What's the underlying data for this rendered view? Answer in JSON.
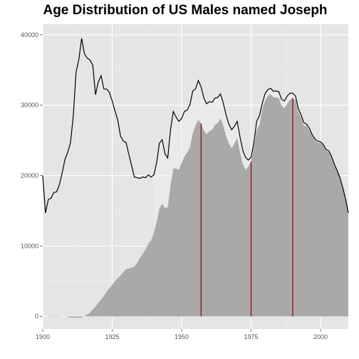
{
  "chart_data": {
    "type": "area",
    "title": "Age Distribution of US Males named Joseph",
    "xlabel": "",
    "ylabel": "",
    "xlim": [
      1900,
      2010
    ],
    "ylim": [
      -1800,
      41500
    ],
    "x_ticks": [
      1900,
      1925,
      1950,
      1975,
      2000
    ],
    "y_ticks": [
      0,
      10000,
      20000,
      30000,
      40000
    ],
    "x_tick_labels": [
      "1900",
      "1925",
      "1950",
      "1975",
      "2000"
    ],
    "y_tick_labels": [
      "0",
      "10000",
      "20000",
      "30000",
      "40000"
    ],
    "grid": true,
    "background": "#e5e5e5",
    "series": [
      {
        "role": "births",
        "style": "line",
        "color": "#000000",
        "points": [
          [
            1900,
            20000
          ],
          [
            1901,
            14700
          ],
          [
            1902,
            16600
          ],
          [
            1903,
            16800
          ],
          [
            1904,
            17600
          ],
          [
            1905,
            17700
          ],
          [
            1906,
            18700
          ],
          [
            1907,
            20400
          ],
          [
            1908,
            22300
          ],
          [
            1909,
            23300
          ],
          [
            1910,
            24700
          ],
          [
            1911,
            28500
          ],
          [
            1912,
            34700
          ],
          [
            1913,
            36500
          ],
          [
            1914,
            39500
          ],
          [
            1915,
            37300
          ],
          [
            1916,
            36700
          ],
          [
            1917,
            36400
          ],
          [
            1918,
            35700
          ],
          [
            1919,
            31500
          ],
          [
            1920,
            33300
          ],
          [
            1921,
            34200
          ],
          [
            1922,
            32300
          ],
          [
            1923,
            32300
          ],
          [
            1924,
            31800
          ],
          [
            1925,
            30600
          ],
          [
            1926,
            29200
          ],
          [
            1927,
            27900
          ],
          [
            1928,
            25600
          ],
          [
            1929,
            24900
          ],
          [
            1930,
            24700
          ],
          [
            1931,
            23000
          ],
          [
            1932,
            21400
          ],
          [
            1933,
            19800
          ],
          [
            1934,
            19700
          ],
          [
            1935,
            19600
          ],
          [
            1936,
            19800
          ],
          [
            1937,
            19700
          ],
          [
            1938,
            20100
          ],
          [
            1939,
            19800
          ],
          [
            1940,
            20100
          ],
          [
            1941,
            21800
          ],
          [
            1942,
            24600
          ],
          [
            1943,
            25100
          ],
          [
            1944,
            23100
          ],
          [
            1945,
            22500
          ],
          [
            1946,
            26500
          ],
          [
            1947,
            29100
          ],
          [
            1948,
            28300
          ],
          [
            1949,
            27700
          ],
          [
            1950,
            28100
          ],
          [
            1951,
            29100
          ],
          [
            1952,
            29300
          ],
          [
            1953,
            30100
          ],
          [
            1954,
            32000
          ],
          [
            1955,
            32300
          ],
          [
            1956,
            33500
          ],
          [
            1957,
            32600
          ],
          [
            1958,
            31000
          ],
          [
            1959,
            30200
          ],
          [
            1960,
            30500
          ],
          [
            1961,
            30400
          ],
          [
            1962,
            31000
          ],
          [
            1963,
            31100
          ],
          [
            1964,
            31600
          ],
          [
            1965,
            30300
          ],
          [
            1966,
            28600
          ],
          [
            1967,
            27300
          ],
          [
            1968,
            26500
          ],
          [
            1969,
            27000
          ],
          [
            1970,
            27700
          ],
          [
            1971,
            25500
          ],
          [
            1972,
            23600
          ],
          [
            1973,
            22600
          ],
          [
            1974,
            22200
          ],
          [
            1975,
            22600
          ],
          [
            1976,
            24600
          ],
          [
            1977,
            27700
          ],
          [
            1978,
            28500
          ],
          [
            1979,
            30200
          ],
          [
            1980,
            31600
          ],
          [
            1981,
            32200
          ],
          [
            1982,
            32400
          ],
          [
            1983,
            32000
          ],
          [
            1984,
            32000
          ],
          [
            1985,
            31900
          ],
          [
            1986,
            30800
          ],
          [
            1987,
            30600
          ],
          [
            1988,
            31300
          ],
          [
            1989,
            31700
          ],
          [
            1990,
            31700
          ],
          [
            1991,
            31300
          ],
          [
            1992,
            29500
          ],
          [
            1993,
            28600
          ],
          [
            1994,
            27500
          ],
          [
            1995,
            27300
          ],
          [
            1996,
            26700
          ],
          [
            1997,
            25800
          ],
          [
            1998,
            25200
          ],
          [
            1999,
            24900
          ],
          [
            2000,
            24800
          ],
          [
            2001,
            24400
          ],
          [
            2002,
            23700
          ],
          [
            2003,
            23500
          ],
          [
            2004,
            22700
          ],
          [
            2005,
            21600
          ],
          [
            2006,
            20700
          ],
          [
            2007,
            19700
          ],
          [
            2008,
            18300
          ],
          [
            2009,
            16700
          ],
          [
            2010,
            14700
          ]
        ]
      },
      {
        "role": "alive",
        "style": "area",
        "color": "#a9a9a9",
        "highlight_color": "#eeeeee",
        "points": [
          [
            1900,
            0
          ],
          [
            1901,
            0
          ],
          [
            1902,
            50
          ],
          [
            1903,
            50
          ],
          [
            1904,
            50
          ],
          [
            1905,
            50
          ],
          [
            1906,
            50
          ],
          [
            1907,
            0
          ],
          [
            1908,
            0
          ],
          [
            1909,
            -100
          ],
          [
            1910,
            -150
          ],
          [
            1911,
            -200
          ],
          [
            1912,
            -200
          ],
          [
            1913,
            -200
          ],
          [
            1914,
            -150
          ],
          [
            1915,
            0
          ],
          [
            1916,
            300
          ],
          [
            1917,
            500
          ],
          [
            1918,
            1000
          ],
          [
            1919,
            1400
          ],
          [
            1920,
            1900
          ],
          [
            1921,
            2400
          ],
          [
            1922,
            2900
          ],
          [
            1923,
            3500
          ],
          [
            1924,
            4000
          ],
          [
            1925,
            4500
          ],
          [
            1926,
            5000
          ],
          [
            1927,
            5400
          ],
          [
            1928,
            5800
          ],
          [
            1929,
            6300
          ],
          [
            1930,
            6700
          ],
          [
            1931,
            6800
          ],
          [
            1932,
            6900
          ],
          [
            1933,
            7100
          ],
          [
            1934,
            7600
          ],
          [
            1935,
            8300
          ],
          [
            1936,
            8900
          ],
          [
            1937,
            9500
          ],
          [
            1938,
            10300
          ],
          [
            1939,
            10800
          ],
          [
            1940,
            11900
          ],
          [
            1941,
            13400
          ],
          [
            1942,
            15300
          ],
          [
            1943,
            16000
          ],
          [
            1944,
            15400
          ],
          [
            1945,
            15500
          ],
          [
            1946,
            18500
          ],
          [
            1947,
            21000
          ],
          [
            1948,
            21000
          ],
          [
            1949,
            20800
          ],
          [
            1950,
            21800
          ],
          [
            1951,
            22700
          ],
          [
            1952,
            23300
          ],
          [
            1953,
            24000
          ],
          [
            1954,
            26000
          ],
          [
            1955,
            27100
          ],
          [
            1956,
            27900
          ],
          [
            1957,
            27400
          ],
          [
            1958,
            26400
          ],
          [
            1959,
            25900
          ],
          [
            1960,
            26300
          ],
          [
            1961,
            26500
          ],
          [
            1962,
            27200
          ],
          [
            1963,
            27500
          ],
          [
            1964,
            28100
          ],
          [
            1965,
            27100
          ],
          [
            1966,
            25600
          ],
          [
            1967,
            24500
          ],
          [
            1968,
            23900
          ],
          [
            1969,
            24500
          ],
          [
            1970,
            25400
          ],
          [
            1971,
            23300
          ],
          [
            1972,
            21700
          ],
          [
            1973,
            20800
          ],
          [
            1974,
            21300
          ],
          [
            1975,
            22000
          ],
          [
            1976,
            23900
          ],
          [
            1977,
            26400
          ],
          [
            1978,
            27200
          ],
          [
            1979,
            29400
          ],
          [
            1980,
            30600
          ],
          [
            1981,
            31300
          ],
          [
            1982,
            31600
          ],
          [
            1983,
            31100
          ],
          [
            1984,
            31100
          ],
          [
            1985,
            31000
          ],
          [
            1986,
            29900
          ],
          [
            1987,
            29600
          ],
          [
            1988,
            30200
          ],
          [
            1989,
            30800
          ],
          [
            1990,
            31000
          ],
          [
            1991,
            30700
          ],
          [
            1992,
            29000
          ],
          [
            1993,
            28200
          ],
          [
            1994,
            27100
          ],
          [
            1995,
            27000
          ],
          [
            1996,
            26400
          ],
          [
            1997,
            25600
          ],
          [
            1998,
            25000
          ],
          [
            1999,
            24700
          ],
          [
            2000,
            24600
          ],
          [
            2001,
            24200
          ],
          [
            2002,
            23500
          ],
          [
            2003,
            23300
          ],
          [
            2004,
            22500
          ],
          [
            2005,
            21500
          ],
          [
            2006,
            20600
          ],
          [
            2007,
            19600
          ],
          [
            2008,
            18200
          ],
          [
            2009,
            16600
          ],
          [
            2010,
            14700
          ]
        ]
      }
    ],
    "reference_lines": [
      {
        "x": 1957,
        "color": "#8b0000"
      },
      {
        "x": 1975,
        "color": "#8b0000"
      },
      {
        "x": 1990,
        "color": "#8b0000"
      }
    ]
  }
}
